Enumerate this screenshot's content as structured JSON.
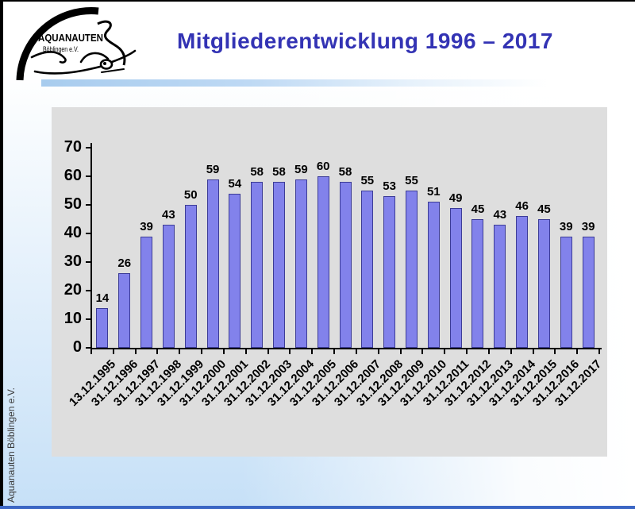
{
  "slide": {
    "title": "Mitgliederentwicklung 1996 – 2017",
    "logo": {
      "line1": "AQUANAUTEN",
      "line2": "Böblingen e.V."
    },
    "footer_vertical_text": "Aquanauten Böblingen e.V.",
    "colors": {
      "title_text": "#3333B4",
      "bg_blue": "#C6E0F7",
      "divider_blue": "#A8CCEE",
      "bottom_line": "#3B66C4",
      "plot_bg": "#DEDEDE",
      "bar_fill": "#8282EB",
      "bar_border": "#3C3C96",
      "footer_text": "#3C3C3C"
    }
  },
  "chart_data": {
    "type": "bar",
    "title": "",
    "xlabel": "",
    "ylabel": "",
    "categories": [
      "13.12.1995",
      "31.12.1996",
      "31.12.1997",
      "31.12.1998",
      "31.12.1999",
      "31.12.2000",
      "31.12.2001",
      "31.12.2002",
      "31.12.2003",
      "31.12.2004",
      "31.12.2005",
      "31.12.2006",
      "31.12.2007",
      "31.12.2008",
      "31.12.2009",
      "31.12.2010",
      "31.12.2011",
      "31.12.2012",
      "31.12.2013",
      "31.12.2014",
      "31.12.2015",
      "31.12.2016",
      "31.12.2017"
    ],
    "values": [
      14,
      26,
      39,
      43,
      50,
      59,
      54,
      58,
      58,
      59,
      60,
      58,
      55,
      53,
      55,
      51,
      49,
      45,
      43,
      46,
      45,
      39,
      39
    ],
    "ylim": [
      0,
      70
    ],
    "yticks": [
      0,
      10,
      20,
      30,
      40,
      50,
      60,
      70
    ],
    "grid": false,
    "legend": false,
    "data_labels": true,
    "x_label_rotation_deg": -45
  }
}
